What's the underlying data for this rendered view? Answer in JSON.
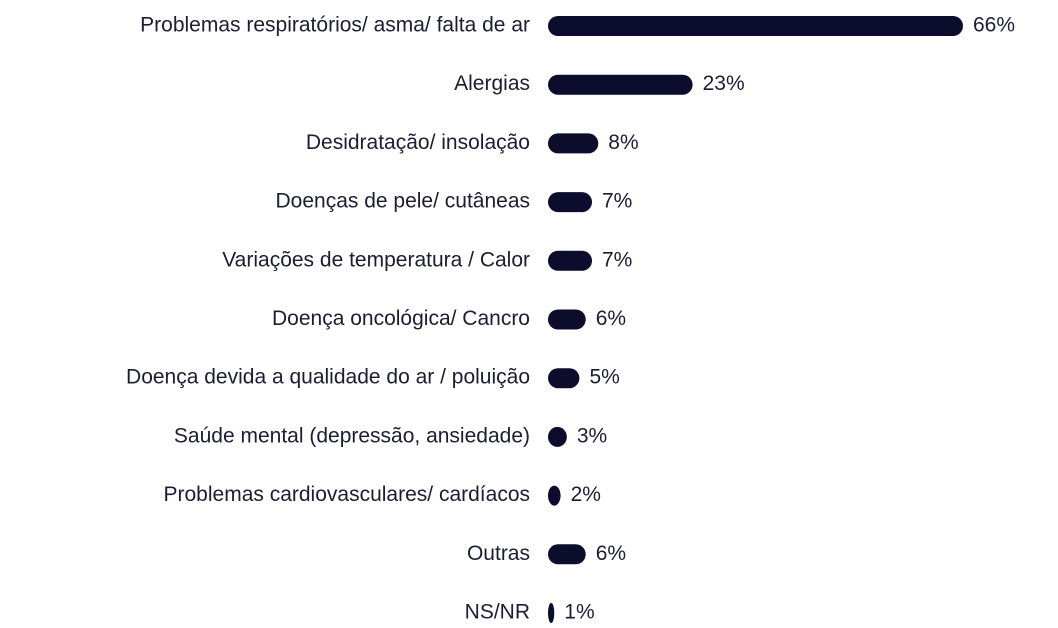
{
  "chart_data": {
    "type": "bar",
    "orientation": "horizontal",
    "categories": [
      "Problemas respiratórios/ asma/ falta de ar",
      "Alergias",
      "Desidratação/ insolação",
      "Doenças de pele/ cutâneas",
      "Variações de temperatura / Calor",
      "Doença oncológica/ Cancro",
      "Doença devida a qualidade do ar / poluição",
      "Saúde mental (depressão, ansiedade)",
      "Problemas cardiovasculares/ cardíacos",
      "Outras",
      "NS/NR"
    ],
    "values": [
      66,
      23,
      8,
      7,
      7,
      6,
      5,
      3,
      2,
      6,
      1
    ],
    "value_labels": [
      "66%",
      "23%",
      "8%",
      "7%",
      "7%",
      "6%",
      "5%",
      "3%",
      "2%",
      "6%",
      "1%"
    ],
    "color": "#0c0c2c"
  }
}
